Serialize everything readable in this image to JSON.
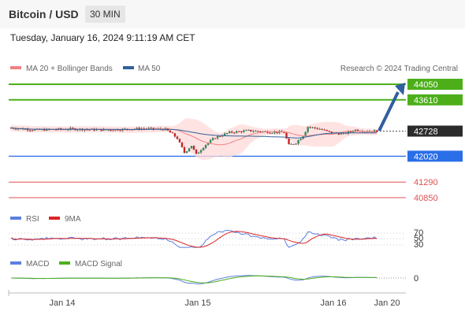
{
  "header": {
    "pair": "Bitcoin / USD",
    "timeframe": "30 MIN",
    "datetime": "Tuesday, January 16, 2024 9:11:19 AM CET"
  },
  "legend": {
    "ma20": "MA 20 + Bollinger Bands",
    "ma50": "MA 50",
    "credit": "Research © 2024 Trading Central",
    "rsi": "RSI",
    "rsi_ma": "9MA",
    "macd": "MACD",
    "macd_signal": "MACD Signal"
  },
  "colors": {
    "up": "#2e8b57",
    "down": "#cc2222",
    "resistance": "#4caf1a",
    "support": "#2a6ee8",
    "minor": "#e05050",
    "ma20": "#f08080",
    "ma50": "#30609a",
    "band": "#ffdada",
    "rsi": "#5b7fe0",
    "rsi_ma": "#dd2222",
    "macd": "#5b7fe0",
    "macd_signal": "#4caf1a",
    "arrow": "#2f5f9e"
  },
  "chart_data": [
    {
      "type": "candlestick",
      "x_labels": [
        "Jan 14",
        "Jan 15",
        "Jan 16",
        "Jan 20"
      ],
      "ylim": [
        40300,
        44900
      ],
      "levels": [
        {
          "value": 44050,
          "label": "44050",
          "kind": "resistance"
        },
        {
          "value": 43610,
          "label": "43610",
          "kind": "resistance"
        },
        {
          "value": 42728,
          "label": "42728",
          "kind": "current"
        },
        {
          "value": 42020,
          "label": "42020",
          "kind": "support"
        },
        {
          "value": 41290,
          "label": "41290",
          "kind": "minor"
        },
        {
          "value": 40850,
          "label": "40850",
          "kind": "minor"
        }
      ],
      "series": [
        {
          "name": "MA 20 + Bollinger Bands",
          "role": "ma20"
        },
        {
          "name": "MA 50",
          "role": "ma50"
        }
      ],
      "forecast_target": 44050
    },
    {
      "type": "line",
      "name": "RSI",
      "y_ticks": [
        {
          "value": 70,
          "label": "70"
        },
        {
          "value": 50,
          "label": "50"
        },
        {
          "value": 30,
          "label": "30"
        }
      ],
      "series": [
        {
          "name": "RSI",
          "role": "rsi"
        },
        {
          "name": "9MA",
          "role": "rsi_ma"
        }
      ]
    },
    {
      "type": "line",
      "name": "MACD",
      "y_ticks": [
        {
          "value": 0,
          "label": "0"
        }
      ],
      "series": [
        {
          "name": "MACD",
          "role": "macd"
        },
        {
          "name": "MACD Signal",
          "role": "macd_signal"
        }
      ]
    }
  ]
}
